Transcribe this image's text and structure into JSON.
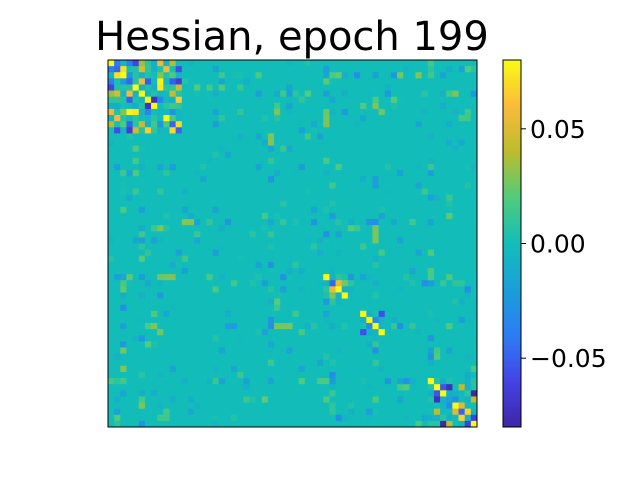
{
  "chart_data": {
    "type": "heatmap",
    "title": "Hessian, epoch 199",
    "xlabel": "",
    "ylabel": "",
    "grid": false,
    "matrix_size": [
      60,
      60
    ],
    "value_range": [
      -0.08,
      0.08
    ],
    "colormap": "parula",
    "colorbar": {
      "ticks": [
        0.05,
        0.0,
        -0.05
      ],
      "tick_labels": [
        "0.05",
        "0.00",
        "−0.05"
      ]
    },
    "background_value": 0.0,
    "diagonal_blocks": [
      {
        "start": 0,
        "end": 12,
        "value_range": [
          -0.08,
          0.08
        ]
      },
      {
        "start": 35,
        "end": 39,
        "value_range": [
          -0.08,
          0.08
        ]
      },
      {
        "start": 41,
        "end": 45,
        "value_range": [
          -0.08,
          0.08
        ]
      },
      {
        "start": 52,
        "end": 60,
        "value_range": [
          -0.08,
          0.08
        ]
      }
    ],
    "notes_visible": [
      "strong positive diagonal entries near 0.08",
      "isolated negative entries near -0.08"
    ]
  }
}
